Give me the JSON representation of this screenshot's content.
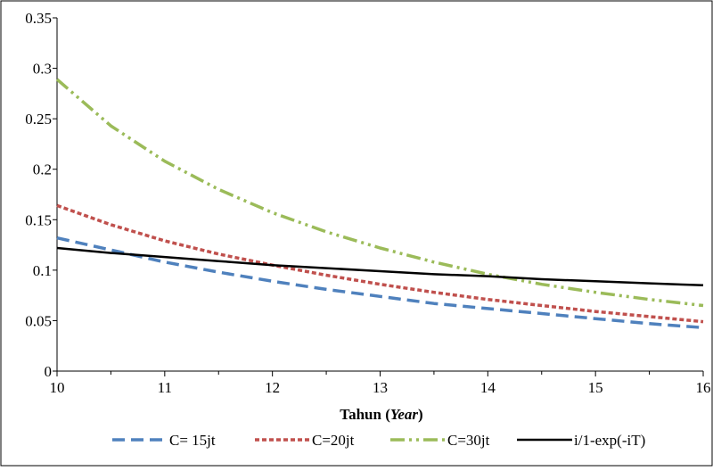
{
  "chart_data": {
    "type": "line",
    "xlabel_main": "Tahun (",
    "xlabel_italic": "Year",
    "xlabel_end": ")",
    "ylabel": "",
    "title": "",
    "xlim": [
      10,
      16
    ],
    "ylim": [
      0,
      0.35
    ],
    "x_ticks": [
      "10",
      "11",
      "12",
      "13",
      "14",
      "15",
      "16"
    ],
    "y_ticks": [
      "0",
      "0.05",
      "0.1",
      "0.15",
      "0.2",
      "0.25",
      "0.3",
      "0.35"
    ],
    "grid": false,
    "legend_position": "bottom",
    "x": [
      10,
      10.5,
      11,
      11.5,
      12,
      12.5,
      13,
      13.5,
      14,
      14.5,
      15,
      15.5,
      16
    ],
    "series": [
      {
        "name": "C= 15jt",
        "color": "#4f81bd",
        "dash": "long-dash",
        "values": [
          0.132,
          0.12,
          0.108,
          0.098,
          0.089,
          0.081,
          0.074,
          0.067,
          0.062,
          0.057,
          0.052,
          0.047,
          0.043
        ]
      },
      {
        "name": "C=20jt",
        "color": "#c0504d",
        "dash": "short-dash",
        "values": [
          0.164,
          0.145,
          0.129,
          0.116,
          0.105,
          0.095,
          0.086,
          0.078,
          0.071,
          0.065,
          0.059,
          0.054,
          0.049
        ]
      },
      {
        "name": "C=30jt",
        "color": "#9bbb59",
        "dash": "dash-dot-dot",
        "values": [
          0.289,
          0.243,
          0.208,
          0.18,
          0.157,
          0.138,
          0.122,
          0.108,
          0.096,
          0.086,
          0.078,
          0.071,
          0.065
        ]
      },
      {
        "name": "i/1-exp(-iT)",
        "color": "#000000",
        "dash": "solid",
        "values": [
          0.122,
          0.117,
          0.113,
          0.109,
          0.105,
          0.102,
          0.099,
          0.096,
          0.094,
          0.091,
          0.089,
          0.087,
          0.085
        ]
      }
    ]
  }
}
